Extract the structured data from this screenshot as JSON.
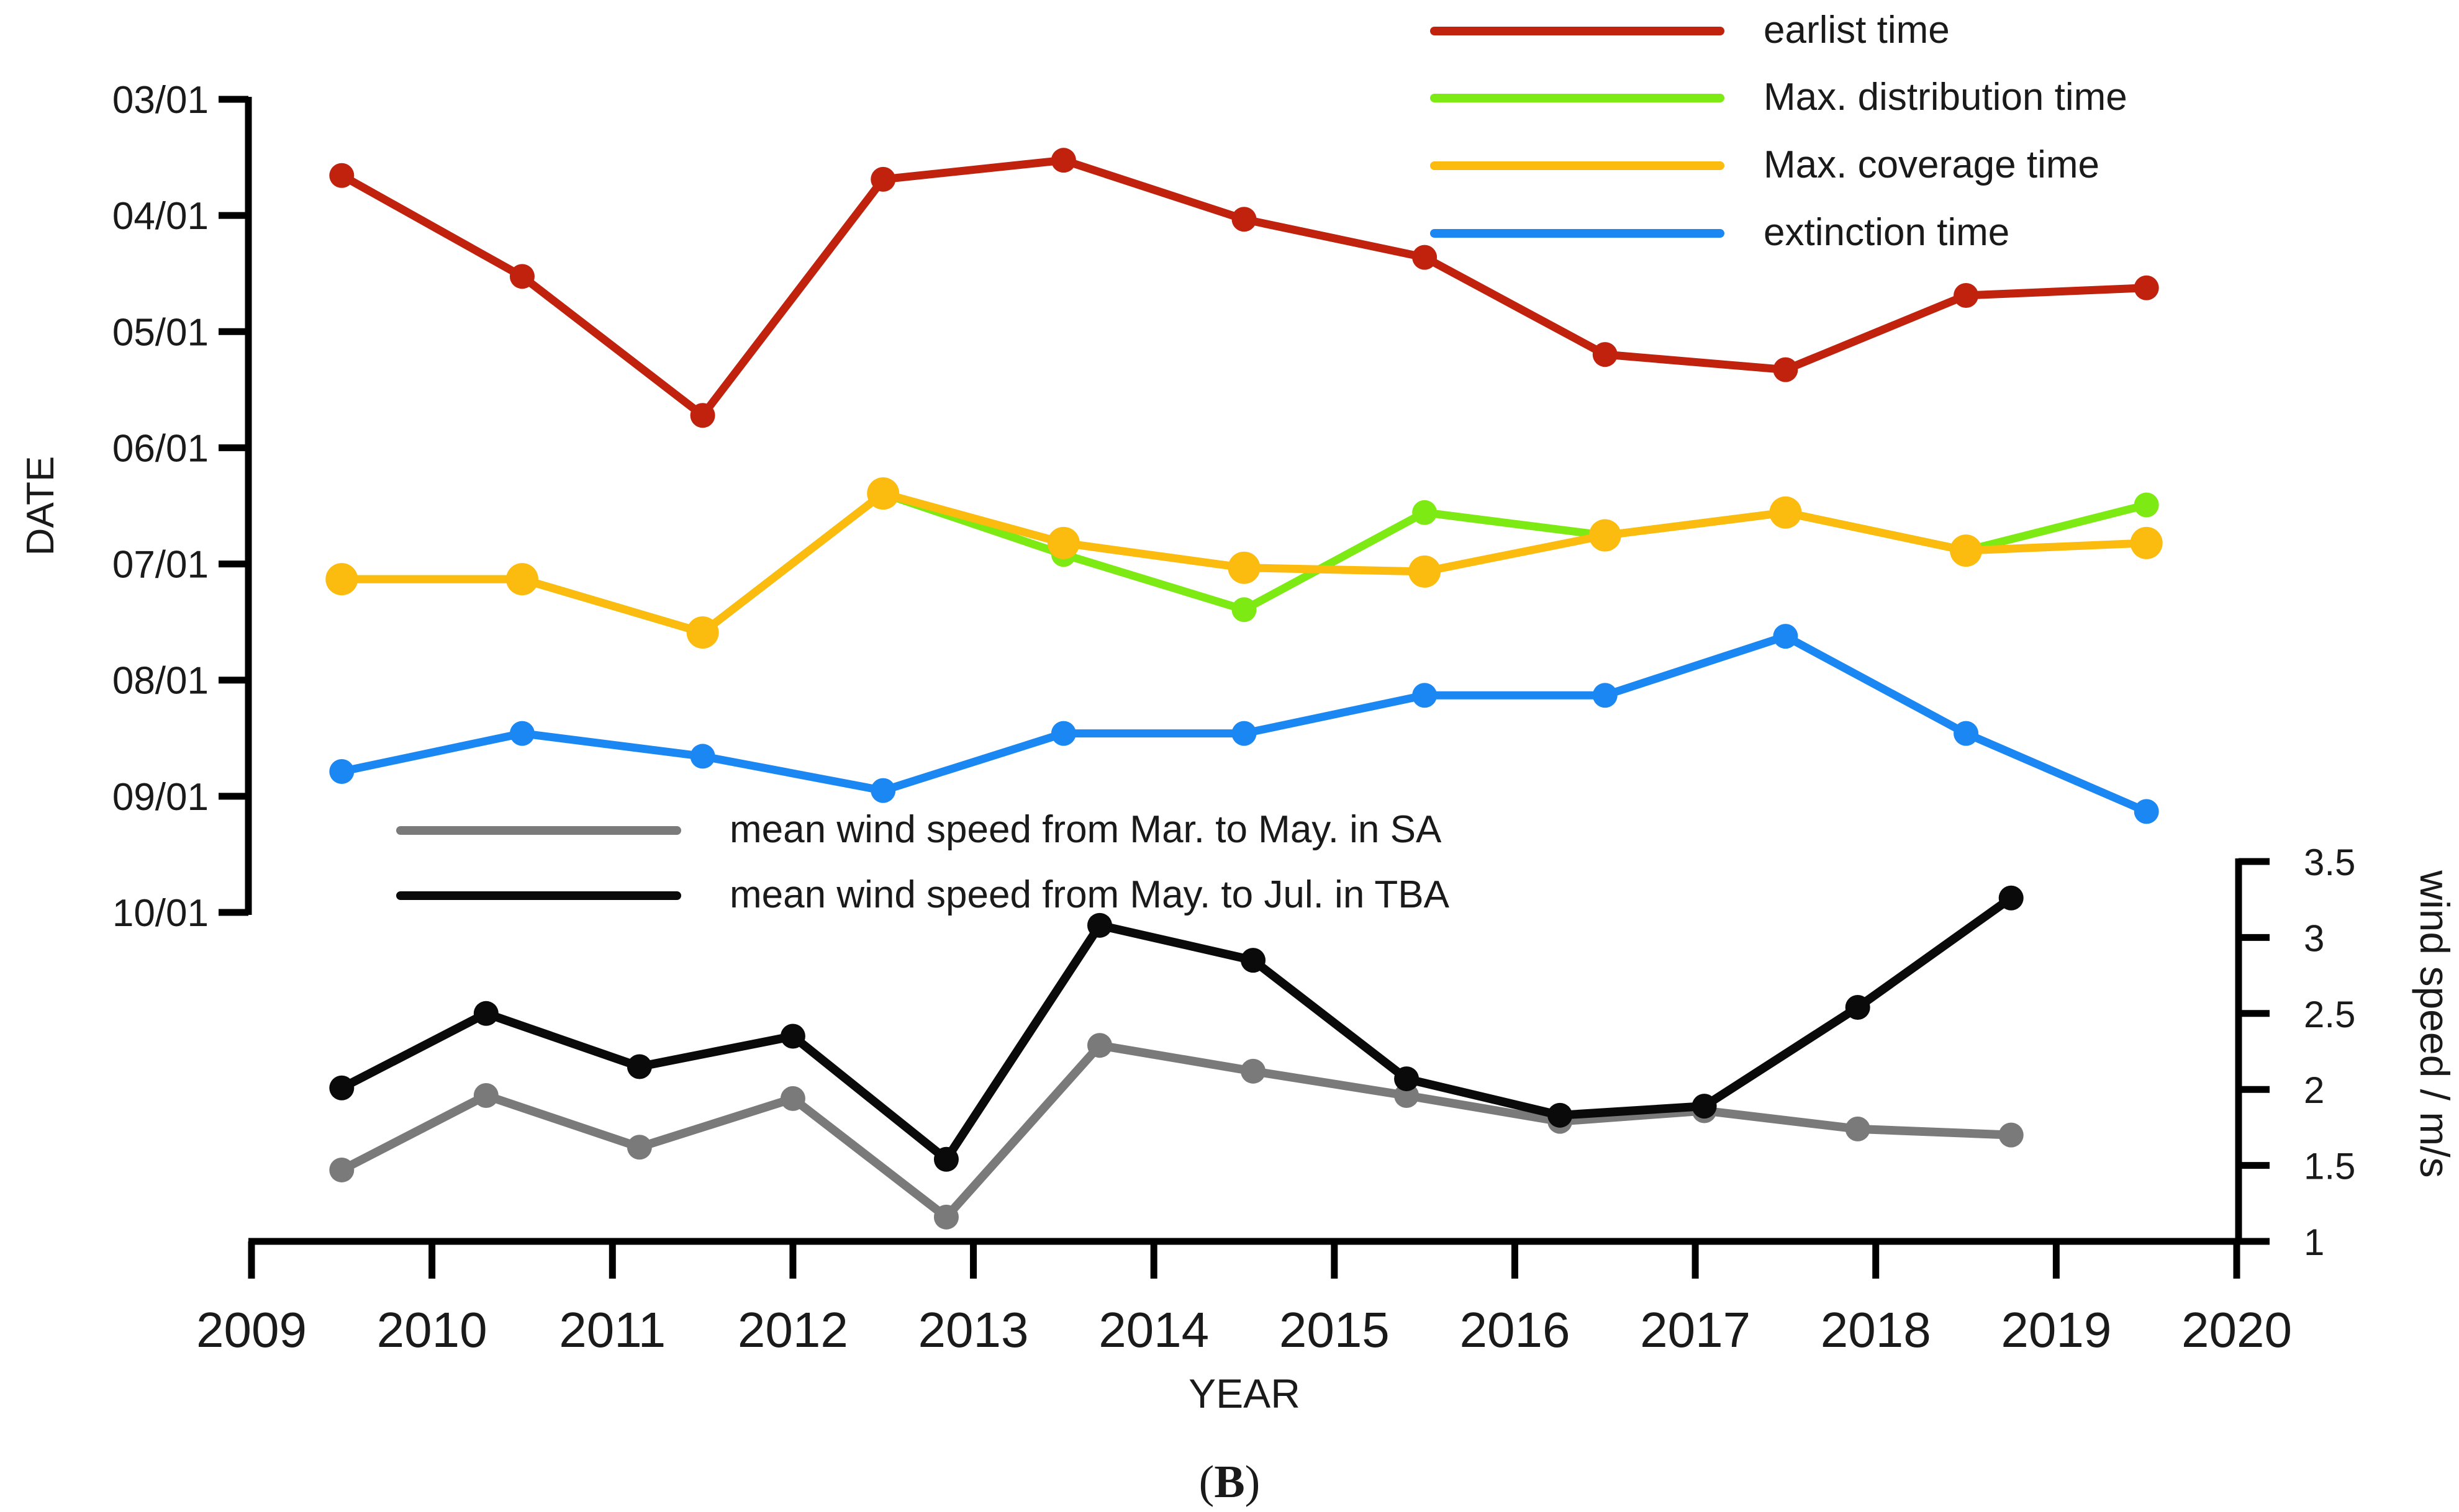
{
  "figure_label": {
    "open": "(",
    "letter": "B",
    "close": ")"
  },
  "chart_data": {
    "type": "line",
    "xlabel": "YEAR",
    "x_ticks": [
      "2009",
      "2010",
      "2011",
      "2012",
      "2013",
      "2014",
      "2015",
      "2016",
      "2017",
      "2018",
      "2019",
      "2020"
    ],
    "xlim": [
      2009,
      2020
    ],
    "date_axis": {
      "label": "DATE",
      "ticks": [
        "03/01",
        "04/01",
        "05/01",
        "06/01",
        "07/01",
        "08/01",
        "09/01",
        "10/01"
      ],
      "range": [
        "03/01",
        "10/01"
      ]
    },
    "wind_axis": {
      "label": "wind speed / m/s",
      "ticks": [
        "1",
        "1.5",
        "2",
        "2.5",
        "3",
        "3.5"
      ],
      "ylim": [
        1,
        3.5
      ]
    },
    "date_series": [
      {
        "name": "earlist time",
        "color": "#c0220e",
        "x": [
          2009.5,
          2010.5,
          2011.5,
          2012.5,
          2013.5,
          2014.5,
          2015.5,
          2016.5,
          2017.5,
          2018.5,
          2019.5
        ],
        "dates": [
          "03/21",
          "04/17",
          "05/23",
          "03/22",
          "03/17",
          "04/02",
          "04/12",
          "05/07",
          "05/11",
          "04/22",
          "04/20"
        ]
      },
      {
        "name": "Max. distribution time",
        "color": "#7dea14",
        "x": [
          2009.5,
          2010.5,
          2011.5,
          2012.5,
          2013.5,
          2014.5,
          2015.5,
          2016.5,
          2017.5,
          2018.5,
          2019.5
        ],
        "dates": [
          "07/05",
          "07/05",
          "07/19",
          "06/13",
          "06/29",
          "07/13",
          "06/18",
          "06/24",
          "06/18",
          "06/28",
          "06/16"
        ]
      },
      {
        "name": "Max. coverage time",
        "color": "#fbbb0f",
        "x": [
          2009.5,
          2010.5,
          2011.5,
          2012.5,
          2013.5,
          2014.5,
          2015.5,
          2016.5,
          2017.5,
          2018.5,
          2019.5
        ],
        "dates": [
          "07/05",
          "07/05",
          "07/19",
          "06/13",
          "06/26",
          "07/02",
          "07/03",
          "06/24",
          "06/18",
          "06/28",
          "06/26"
        ]
      },
      {
        "name": "extinction time",
        "color": "#1b87f2",
        "x": [
          2009.5,
          2010.5,
          2011.5,
          2012.5,
          2013.5,
          2014.5,
          2015.5,
          2016.5,
          2017.5,
          2018.5,
          2019.5
        ],
        "dates": [
          "08/25",
          "08/15",
          "08/21",
          "08/30",
          "08/15",
          "08/15",
          "08/05",
          "08/05",
          "07/20",
          "08/15",
          "09/05"
        ]
      }
    ],
    "wind_series": [
      {
        "name": "mean wind speed from Mar. to May. in SA",
        "color": "#7a7a7a",
        "x": [
          2009.5,
          2010.3,
          2011.15,
          2012.0,
          2012.85,
          2013.7,
          2014.55,
          2015.4,
          2016.25,
          2017.05,
          2017.9,
          2018.75
        ],
        "values": [
          1.47,
          1.96,
          1.62,
          1.94,
          1.16,
          2.29,
          2.12,
          1.96,
          1.79,
          1.86,
          1.74,
          1.7
        ]
      },
      {
        "name": "mean wind speed from May. to Jul. in TBA",
        "color": "#0a0a0a",
        "x": [
          2009.5,
          2010.3,
          2011.15,
          2012.0,
          2012.85,
          2013.7,
          2014.55,
          2015.4,
          2016.25,
          2017.05,
          2017.9,
          2018.75
        ],
        "values": [
          2.01,
          2.5,
          2.15,
          2.35,
          1.54,
          3.08,
          2.85,
          2.07,
          1.83,
          1.89,
          2.54,
          3.26
        ]
      }
    ]
  }
}
